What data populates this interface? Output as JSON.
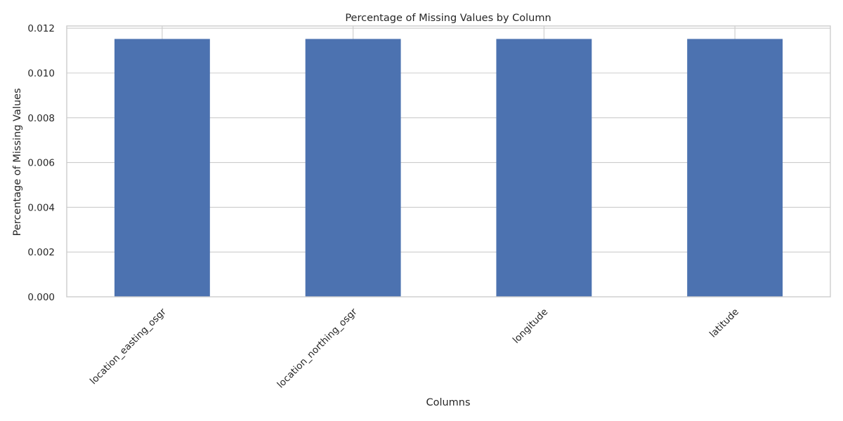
{
  "chart_data": {
    "type": "bar",
    "title": "Percentage of Missing Values by Column",
    "xlabel": "Columns",
    "ylabel": "Percentage of Missing Values",
    "categories": [
      "location_easting_osgr",
      "location_northing_osgr",
      "longitude",
      "latitude"
    ],
    "values": [
      0.01152,
      0.01152,
      0.01152,
      0.01152
    ],
    "ylim": [
      0,
      0.0121
    ],
    "yticks": [
      "0.000",
      "0.002",
      "0.004",
      "0.006",
      "0.008",
      "0.010",
      "0.012"
    ],
    "grid": true,
    "legend": "none",
    "bar_color": "#4c72b0",
    "grid_color": "#cccccc",
    "text_color": "#262626"
  }
}
